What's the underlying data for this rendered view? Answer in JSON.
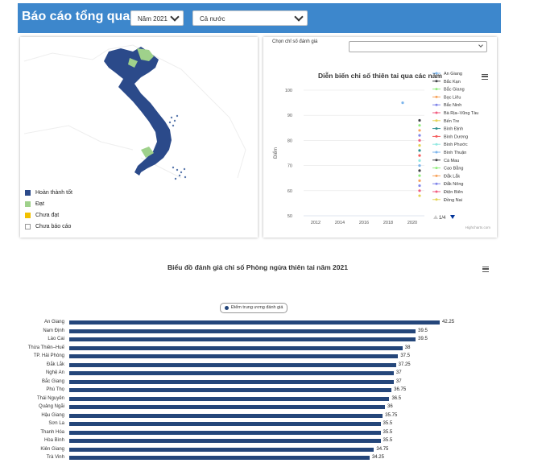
{
  "header": {
    "title": "Báo cáo tổng quan",
    "year_select": "Năm 2021",
    "region_select": "Cả nước"
  },
  "map_panel": {
    "legend": [
      {
        "label": "Hoàn thành tốt",
        "color": "#2b4a8a"
      },
      {
        "label": "Đạt",
        "color": "#9fd18b"
      },
      {
        "label": "Chưa đạt",
        "color": "#f2c100"
      },
      {
        "label": "Chưa báo cáo",
        "color": "#ffffff"
      }
    ]
  },
  "line_panel": {
    "select_label": "Chọn chỉ số đánh giá",
    "select_value": "",
    "chart_data": {
      "type": "scatter",
      "title": "Diễn biến chỉ số thiên tai qua các năm",
      "ylabel": "Điểm",
      "xlim": [
        2011,
        2021
      ],
      "ylim": [
        50,
        100
      ],
      "yticks": [
        50,
        60,
        70,
        80,
        90,
        100
      ],
      "xticks": [
        2012,
        2014,
        2016,
        2018,
        2020
      ],
      "series": [
        {
          "name": "An Giang",
          "color": "#7cb5ec",
          "x": [
            2019.2
          ],
          "y": [
            95
          ]
        },
        {
          "name": "Bắc Kạn",
          "color": "#434348",
          "x": [
            2020.6
          ],
          "y": [
            88
          ]
        },
        {
          "name": "Bắc Giang",
          "color": "#90ed7d",
          "x": [
            2020.6
          ],
          "y": [
            86
          ]
        },
        {
          "name": "Bạc Liêu",
          "color": "#f7a35c",
          "x": [
            2020.6
          ],
          "y": [
            84
          ]
        },
        {
          "name": "Bắc Ninh",
          "color": "#8085e9",
          "x": [
            2020.6
          ],
          "y": [
            82
          ]
        },
        {
          "name": "Bà Rịa–Vũng Tàu",
          "color": "#f15c80",
          "x": [
            2020.6
          ],
          "y": [
            80
          ]
        },
        {
          "name": "Bến Tre",
          "color": "#e4d354",
          "x": [
            2020.6
          ],
          "y": [
            78
          ]
        },
        {
          "name": "Bình Định",
          "color": "#2b908f",
          "x": [
            2020.6
          ],
          "y": [
            76
          ]
        },
        {
          "name": "Bình Dương",
          "color": "#f45b5b",
          "x": [
            2020.6
          ],
          "y": [
            74
          ]
        },
        {
          "name": "Bình Phước",
          "color": "#91e8e1",
          "x": [
            2020.6
          ],
          "y": [
            72
          ]
        },
        {
          "name": "Bình Thuận",
          "color": "#7cb5ec",
          "x": [
            2020.6
          ],
          "y": [
            70
          ]
        },
        {
          "name": "Cà Mau",
          "color": "#434348",
          "x": [
            2020.6
          ],
          "y": [
            68
          ]
        },
        {
          "name": "Cao Bằng",
          "color": "#90ed7d",
          "x": [
            2020.6
          ],
          "y": [
            66
          ]
        },
        {
          "name": "Đắk Lắk",
          "color": "#f7a35c",
          "x": [
            2020.6
          ],
          "y": [
            64
          ]
        },
        {
          "name": "Đắk Nông",
          "color": "#8085e9",
          "x": [
            2020.6
          ],
          "y": [
            62
          ]
        },
        {
          "name": "Điện Biên",
          "color": "#f15c80",
          "x": [
            2020.6
          ],
          "y": [
            60
          ]
        },
        {
          "name": "Đồng Nai",
          "color": "#e4d354",
          "x": [
            2020.6
          ],
          "y": [
            58
          ]
        }
      ]
    },
    "pager": "1/4",
    "credit": "Highcharts.com"
  },
  "bar_panel": {
    "chart_data": {
      "type": "bar",
      "title": "Biểu đồ đánh giá chỉ số Phòng ngừa thiên tai năm 2021",
      "legend": "Điểm trung ương đánh giá",
      "color": "#24467a",
      "xlim": [
        0,
        45
      ],
      "categories": [
        "An Giang",
        "Nam Định",
        "Lào Cai",
        "Thừa Thiên–Huế",
        "TP. Hải Phòng",
        "Đắk Lắk",
        "Nghệ An",
        "Bắc Giang",
        "Phú Thọ",
        "Thái Nguyên",
        "Quảng Ngãi",
        "Hậu Giang",
        "Sơn La",
        "Thanh Hóa",
        "Hòa Bình",
        "Kiên Giang",
        "Trà Vinh"
      ],
      "values": [
        42.25,
        39.5,
        39.5,
        38,
        37.5,
        37.25,
        37,
        37,
        36.75,
        36.5,
        36,
        35.75,
        35.5,
        35.5,
        35.5,
        34.75,
        34.25
      ]
    }
  }
}
